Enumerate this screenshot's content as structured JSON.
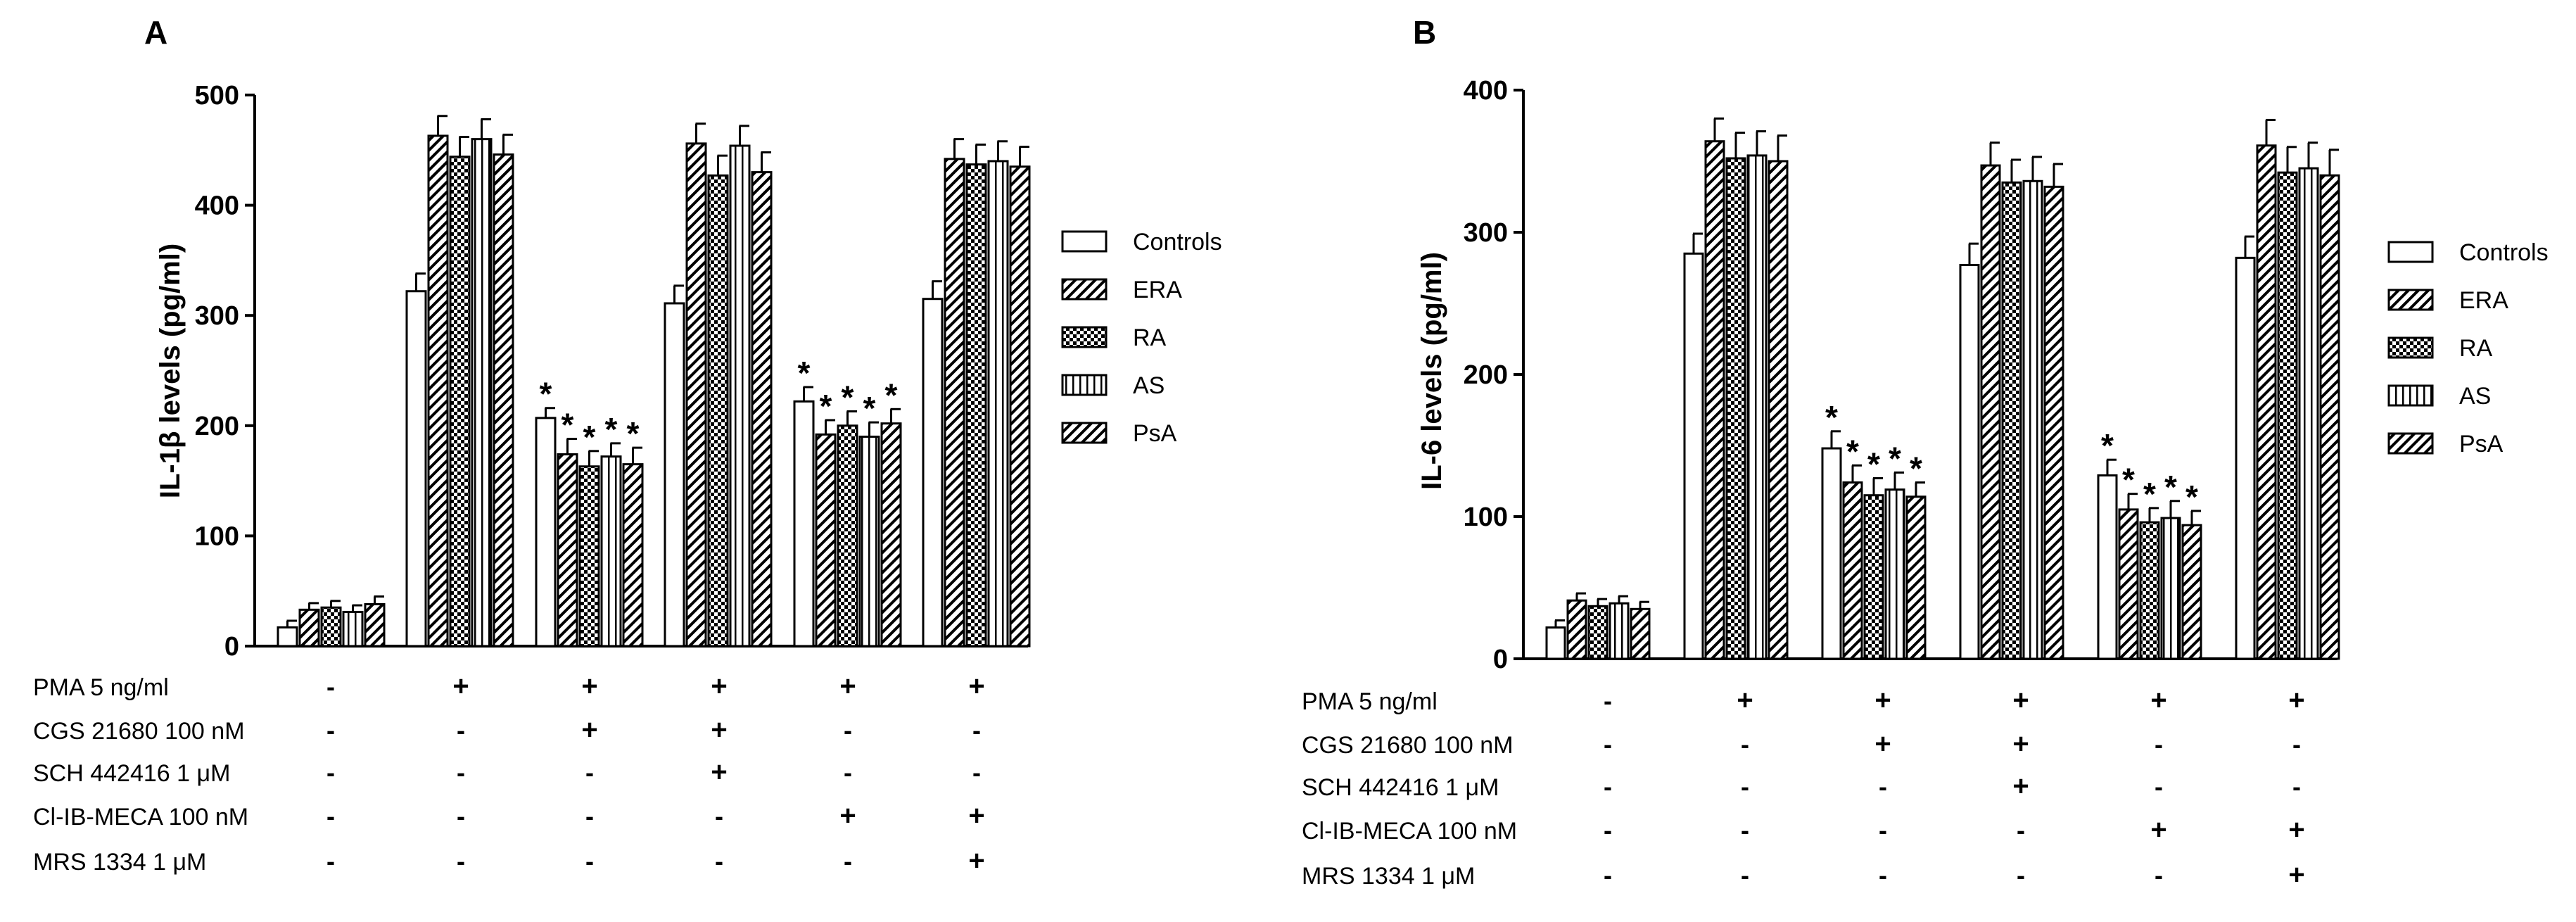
{
  "chart_data": [
    {
      "panel": "A",
      "type": "bar",
      "ylabel": "IL-1β levels (pg/ml)",
      "ylim": [
        0,
        500
      ],
      "yticks": [
        0,
        100,
        200,
        300,
        400,
        500
      ],
      "series_names": [
        "Controls",
        "ERA",
        "RA",
        "AS",
        "PsA"
      ],
      "groups": [
        {
          "values": [
            17,
            33,
            35,
            31,
            38
          ],
          "errors": [
            6,
            6,
            6,
            6,
            7
          ],
          "stars": [
            false,
            false,
            false,
            false,
            false
          ]
        },
        {
          "values": [
            322,
            463,
            444,
            460,
            446
          ],
          "errors": [
            16,
            18,
            18,
            18,
            18
          ],
          "stars": [
            false,
            false,
            false,
            false,
            false
          ]
        },
        {
          "values": [
            207,
            174,
            163,
            172,
            165
          ],
          "errors": [
            9,
            14,
            14,
            12,
            15
          ],
          "stars": [
            true,
            true,
            true,
            true,
            true
          ]
        },
        {
          "values": [
            311,
            456,
            427,
            454,
            430
          ],
          "errors": [
            16,
            18,
            18,
            18,
            18
          ],
          "stars": [
            false,
            false,
            false,
            false,
            false
          ]
        },
        {
          "values": [
            222,
            192,
            200,
            190,
            202
          ],
          "errors": [
            13,
            13,
            13,
            13,
            13
          ],
          "stars": [
            true,
            true,
            true,
            true,
            true
          ]
        },
        {
          "values": [
            315,
            442,
            437,
            440,
            435
          ],
          "errors": [
            16,
            18,
            18,
            18,
            18
          ],
          "stars": [
            false,
            false,
            false,
            false,
            false
          ]
        }
      ],
      "conditions": [
        {
          "label": "PMA 5 ng/ml",
          "signs": [
            "-",
            "+",
            "+",
            "+",
            "+",
            "+"
          ]
        },
        {
          "label": "CGS 21680 100 nM",
          "signs": [
            "-",
            "-",
            "+",
            "+",
            "-",
            "-"
          ]
        },
        {
          "label": "SCH 442416 1 μM",
          "signs": [
            "-",
            "-",
            "-",
            "+",
            "-",
            "-"
          ]
        },
        {
          "label": "Cl-IB-MECA 100 nM",
          "signs": [
            "-",
            "-",
            "-",
            "-",
            "+",
            "+"
          ]
        },
        {
          "label": "MRS 1334 1 μM",
          "signs": [
            "-",
            "-",
            "-",
            "-",
            "-",
            "+"
          ]
        }
      ]
    },
    {
      "panel": "B",
      "type": "bar",
      "ylabel": "IL-6 levels (pg/ml)",
      "ylim": [
        0,
        400
      ],
      "yticks": [
        0,
        100,
        200,
        300,
        400
      ],
      "series_names": [
        "Controls",
        "ERA",
        "RA",
        "AS",
        "PsA"
      ],
      "groups": [
        {
          "values": [
            22,
            41,
            37,
            39,
            35
          ],
          "errors": [
            5,
            5,
            5,
            5,
            5
          ],
          "stars": [
            false,
            false,
            false,
            false,
            false
          ]
        },
        {
          "values": [
            285,
            364,
            352,
            354,
            350
          ],
          "errors": [
            14,
            16,
            18,
            17,
            18
          ],
          "stars": [
            false,
            false,
            false,
            false,
            false
          ]
        },
        {
          "values": [
            148,
            124,
            115,
            119,
            114
          ],
          "errors": [
            12,
            12,
            12,
            12,
            10
          ],
          "stars": [
            true,
            true,
            true,
            true,
            true
          ]
        },
        {
          "values": [
            277,
            347,
            335,
            336,
            332
          ],
          "errors": [
            15,
            16,
            16,
            17,
            16
          ],
          "stars": [
            false,
            false,
            false,
            false,
            false
          ]
        },
        {
          "values": [
            129,
            105,
            96,
            99,
            94
          ],
          "errors": [
            11,
            11,
            10,
            12,
            10
          ],
          "stars": [
            true,
            true,
            true,
            true,
            true
          ]
        },
        {
          "values": [
            282,
            361,
            342,
            345,
            340
          ],
          "errors": [
            15,
            18,
            18,
            18,
            18
          ],
          "stars": [
            false,
            false,
            false,
            false,
            false
          ]
        }
      ],
      "conditions": [
        {
          "label": "PMA 5 ng/ml",
          "signs": [
            "-",
            "+",
            "+",
            "+",
            "+",
            "+"
          ]
        },
        {
          "label": "CGS 21680 100 nM",
          "signs": [
            "-",
            "-",
            "+",
            "+",
            "-",
            "-"
          ]
        },
        {
          "label": "SCH 442416 1 μM",
          "signs": [
            "-",
            "-",
            "-",
            "+",
            "-",
            "-"
          ]
        },
        {
          "label": "Cl-IB-MECA 100 nM",
          "signs": [
            "-",
            "-",
            "-",
            "-",
            "+",
            "+"
          ]
        },
        {
          "label": "MRS 1334 1 μM",
          "signs": [
            "-",
            "-",
            "-",
            "-",
            "-",
            "+"
          ]
        }
      ]
    }
  ],
  "style": {
    "bar_stroke": "#000000",
    "bar_fill": "#ffffff",
    "background": "#ffffff"
  }
}
